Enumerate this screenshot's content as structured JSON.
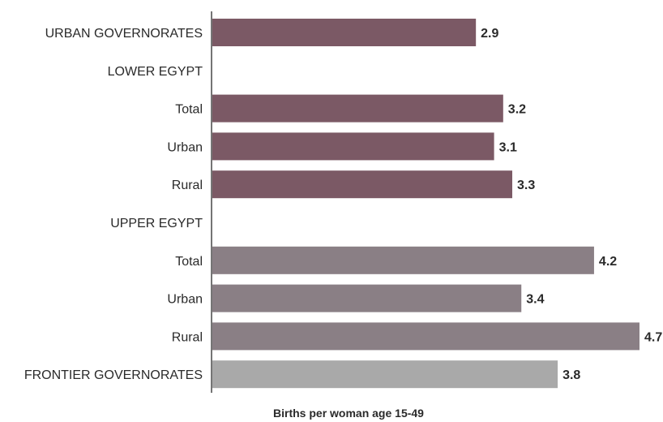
{
  "chart_data": {
    "type": "bar",
    "orientation": "horizontal",
    "title": "",
    "xlabel": "Births per woman age 15-49",
    "ylabel": "",
    "xlim": [
      0,
      4.7
    ],
    "grid": false,
    "legend": "none",
    "categories": [
      "URBAN GOVERNORATES",
      "LOWER EGYPT",
      "Total",
      "Urban",
      "Rural",
      "UPPER EGYPT",
      "Total",
      "Urban",
      "Rural",
      "FRONTIER GOVERNORATES"
    ],
    "values": [
      2.9,
      null,
      3.2,
      3.1,
      3.3,
      null,
      4.2,
      3.4,
      4.7,
      3.8
    ],
    "value_labels": [
      "2.9",
      "",
      "3.2",
      "3.1",
      "3.3",
      "",
      "4.2",
      "3.4",
      "4.7",
      "3.8"
    ],
    "colors": [
      "#7b5965",
      null,
      "#7b5965",
      "#7b5965",
      "#7b5965",
      null,
      "#8a7f85",
      "#8a7f85",
      "#8a7f85",
      "#a9a9a9"
    ]
  }
}
